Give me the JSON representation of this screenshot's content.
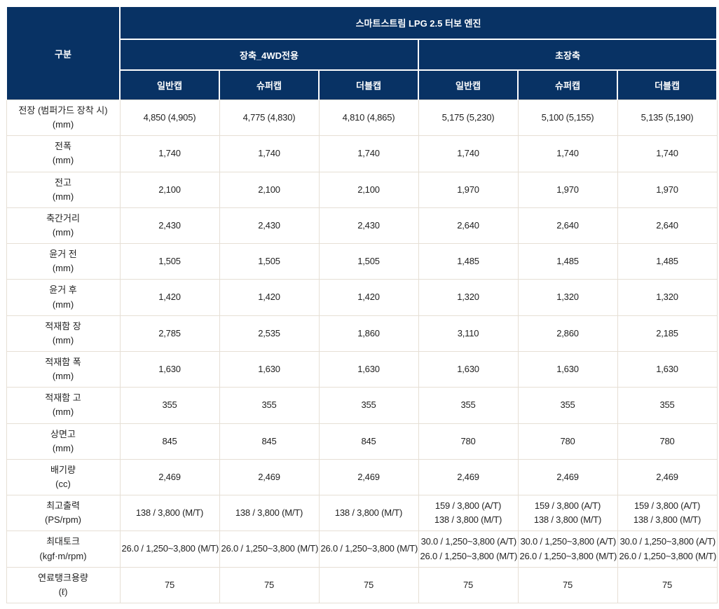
{
  "colors": {
    "header_bg": "#083264",
    "header_text": "#ffffff",
    "grid_line": "#e6dfd5",
    "body_text": "#222222"
  },
  "table": {
    "corner_label": "구분",
    "engine_header": "스마트스트림 LPG 2.5 터보 엔진",
    "groups": [
      {
        "label": "장축_4WD전용",
        "cabs": [
          "일반캡",
          "슈퍼캡",
          "더블캡"
        ]
      },
      {
        "label": "초장축",
        "cabs": [
          "일반캡",
          "슈퍼캡",
          "더블캡"
        ]
      }
    ],
    "rows": [
      {
        "name": "전장 (범퍼가드 장착 시)",
        "unit": "(mm)",
        "values": [
          "4,850 (4,905)",
          "4,775 (4,830)",
          "4,810 (4,865)",
          "5,175 (5,230)",
          "5,100 (5,155)",
          "5,135 (5,190)"
        ]
      },
      {
        "name": "전폭",
        "unit": "(mm)",
        "values": [
          "1,740",
          "1,740",
          "1,740",
          "1,740",
          "1,740",
          "1,740"
        ]
      },
      {
        "name": "전고",
        "unit": "(mm)",
        "values": [
          "2,100",
          "2,100",
          "2,100",
          "1,970",
          "1,970",
          "1,970"
        ]
      },
      {
        "name": "축간거리",
        "unit": "(mm)",
        "values": [
          "2,430",
          "2,430",
          "2,430",
          "2,640",
          "2,640",
          "2,640"
        ]
      },
      {
        "name": "윤거 전",
        "unit": "(mm)",
        "values": [
          "1,505",
          "1,505",
          "1,505",
          "1,485",
          "1,485",
          "1,485"
        ]
      },
      {
        "name": "윤거 후",
        "unit": "(mm)",
        "values": [
          "1,420",
          "1,420",
          "1,420",
          "1,320",
          "1,320",
          "1,320"
        ]
      },
      {
        "name": "적재함 장",
        "unit": "(mm)",
        "values": [
          "2,785",
          "2,535",
          "1,860",
          "3,110",
          "2,860",
          "2,185"
        ]
      },
      {
        "name": "적재함 폭",
        "unit": "(mm)",
        "values": [
          "1,630",
          "1,630",
          "1,630",
          "1,630",
          "1,630",
          "1,630"
        ]
      },
      {
        "name": "적재함 고",
        "unit": "(mm)",
        "values": [
          "355",
          "355",
          "355",
          "355",
          "355",
          "355"
        ]
      },
      {
        "name": "상면고",
        "unit": "(mm)",
        "values": [
          "845",
          "845",
          "845",
          "780",
          "780",
          "780"
        ]
      },
      {
        "name": "배기량",
        "unit": "(cc)",
        "values": [
          "2,469",
          "2,469",
          "2,469",
          "2,469",
          "2,469",
          "2,469"
        ]
      },
      {
        "name": "최고출력",
        "unit": "(PS/rpm)",
        "values": [
          "138 / 3,800 (M/T)",
          "138 / 3,800 (M/T)",
          "138 / 3,800 (M/T)",
          "159 / 3,800 (A/T)\n138 / 3,800 (M/T)",
          "159 / 3,800 (A/T)\n138 / 3,800 (M/T)",
          "159 / 3,800 (A/T)\n138 / 3,800 (M/T)"
        ]
      },
      {
        "name": "최대토크",
        "unit": "(kgf·m/rpm)",
        "values": [
          "26.0 / 1,250~3,800 (M/T)",
          "26.0 / 1,250~3,800 (M/T)",
          "26.0 / 1,250~3,800 (M/T)",
          "30.0 / 1,250~3,800 (A/T)\n26.0 / 1,250~3,800 (M/T)",
          "30.0 / 1,250~3,800 (A/T)\n26.0 / 1,250~3,800 (M/T)",
          "30.0 / 1,250~3,800 (A/T)\n26.0 / 1,250~3,800 (M/T)"
        ]
      },
      {
        "name": "연료탱크용량",
        "unit": "(ℓ)",
        "values": [
          "75",
          "75",
          "75",
          "75",
          "75",
          "75"
        ]
      }
    ]
  }
}
